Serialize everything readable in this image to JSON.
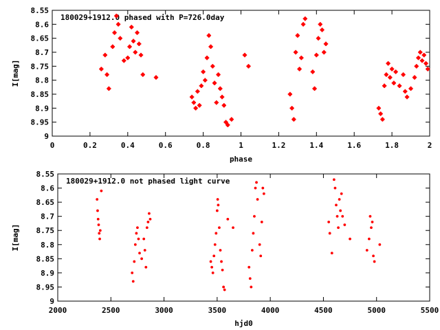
{
  "chart_data": [
    {
      "type": "scatter",
      "title": "180029+1912.0 phased with P=726.0day",
      "xlabel": "phase",
      "ylabel": "I[mag]",
      "xlim": [
        0,
        2
      ],
      "ylim": [
        9,
        8.55
      ],
      "y_inverted": true,
      "xticks": [
        0,
        0.2,
        0.4,
        0.6,
        0.8,
        1,
        1.2,
        1.4,
        1.6,
        1.8,
        2
      ],
      "xtick_labels": [
        "0",
        "0.2",
        "0.4",
        "0.6",
        "0.8",
        "1",
        "1.2",
        "1.4",
        "1.6",
        "1.8",
        "2"
      ],
      "yticks": [
        8.55,
        8.6,
        8.65,
        8.7,
        8.75,
        8.8,
        8.85,
        8.9,
        8.95,
        9
      ],
      "ytick_labels": [
        "8.55",
        "8.6",
        "8.65",
        "8.7",
        "8.75",
        "8.8",
        "8.85",
        "8.9",
        "8.95",
        "9"
      ],
      "marker_color": "#ff0000",
      "x": [
        0.26,
        0.28,
        0.29,
        0.3,
        0.32,
        0.33,
        0.34,
        0.35,
        0.36,
        0.38,
        0.4,
        0.41,
        0.42,
        0.43,
        0.44,
        0.45,
        0.46,
        0.47,
        0.48,
        0.55,
        0.74,
        0.75,
        0.76,
        0.77,
        0.78,
        0.79,
        0.8,
        0.81,
        0.82,
        0.83,
        0.84,
        0.85,
        0.86,
        0.87,
        0.88,
        0.89,
        0.9,
        0.91,
        0.92,
        0.93,
        0.95,
        1.02,
        1.04,
        1.26,
        1.27,
        1.28,
        1.29,
        1.3,
        1.31,
        1.32,
        1.33,
        1.34,
        1.38,
        1.39,
        1.4,
        1.41,
        1.42,
        1.43,
        1.44,
        1.45,
        1.73,
        1.74,
        1.75,
        1.76,
        1.77,
        1.78,
        1.79,
        1.8,
        1.81,
        1.82,
        1.84,
        1.86,
        1.87,
        1.88,
        1.9,
        1.92,
        1.93,
        1.94,
        1.95,
        1.96,
        1.97,
        1.98,
        1.99
      ],
      "y": [
        8.76,
        8.71,
        8.78,
        8.83,
        8.68,
        8.63,
        8.57,
        8.6,
        8.65,
        8.73,
        8.72,
        8.68,
        8.61,
        8.66,
        8.7,
        8.63,
        8.67,
        8.71,
        8.78,
        8.79,
        8.86,
        8.88,
        8.9,
        8.84,
        8.89,
        8.82,
        8.77,
        8.8,
        8.72,
        8.64,
        8.68,
        8.75,
        8.81,
        8.88,
        8.78,
        8.83,
        8.86,
        8.89,
        8.95,
        8.96,
        8.94,
        8.71,
        8.75,
        8.85,
        8.9,
        8.94,
        8.7,
        8.64,
        8.76,
        8.72,
        8.6,
        8.58,
        8.77,
        8.83,
        8.71,
        8.65,
        8.6,
        8.62,
        8.7,
        8.67,
        8.9,
        8.92,
        8.94,
        8.82,
        8.78,
        8.74,
        8.79,
        8.76,
        8.81,
        8.77,
        8.82,
        8.78,
        8.84,
        8.86,
        8.83,
        8.79,
        8.75,
        8.72,
        8.7,
        8.73,
        8.71,
        8.74,
        8.76
      ]
    },
    {
      "type": "scatter",
      "title": "180029+1912.0 not phased light curve",
      "xlabel": "hjd0",
      "ylabel": "I[mag]",
      "xlim": [
        2000,
        5500
      ],
      "ylim": [
        9,
        8.55
      ],
      "y_inverted": true,
      "xticks": [
        2000,
        2500,
        3000,
        3500,
        4000,
        4500,
        5000,
        5500
      ],
      "xtick_labels": [
        "2000",
        "2500",
        "3000",
        "3500",
        "4000",
        "4500",
        "5000",
        "5500"
      ],
      "yticks": [
        8.55,
        8.6,
        8.65,
        8.7,
        8.75,
        8.8,
        8.85,
        8.9,
        8.95,
        9
      ],
      "ytick_labels": [
        "8.55",
        "8.6",
        "8.65",
        "8.7",
        "8.75",
        "8.8",
        "8.85",
        "8.9",
        "8.95",
        "9"
      ],
      "marker_color": "#ff0000",
      "x": [
        2370,
        2375,
        2380,
        2385,
        2390,
        2395,
        2400,
        2410,
        2700,
        2710,
        2720,
        2730,
        2740,
        2750,
        2760,
        2770,
        2790,
        2810,
        2820,
        2830,
        2840,
        2850,
        2860,
        2870,
        3440,
        3450,
        3460,
        3470,
        3480,
        3490,
        3500,
        3505,
        3510,
        3520,
        3530,
        3540,
        3550,
        3560,
        3570,
        3600,
        3650,
        3800,
        3810,
        3820,
        3830,
        3840,
        3850,
        3860,
        3870,
        3880,
        3900,
        3910,
        3920,
        3930,
        3940,
        4550,
        4560,
        4580,
        4600,
        4610,
        4620,
        4630,
        4640,
        4650,
        4660,
        4670,
        4680,
        4700,
        4750,
        4910,
        4930,
        4940,
        4950,
        4960,
        4970,
        4980,
        5030
      ],
      "y": [
        8.64,
        8.68,
        8.71,
        8.73,
        8.76,
        8.78,
        8.75,
        8.61,
        8.9,
        8.93,
        8.86,
        8.8,
        8.76,
        8.74,
        8.78,
        8.83,
        8.85,
        8.78,
        8.82,
        8.88,
        8.74,
        8.72,
        8.69,
        8.71,
        8.86,
        8.88,
        8.9,
        8.84,
        8.8,
        8.76,
        8.68,
        8.64,
        8.66,
        8.74,
        8.82,
        8.86,
        8.89,
        8.95,
        8.96,
        8.71,
        8.74,
        8.88,
        8.92,
        8.95,
        8.82,
        8.76,
        8.7,
        8.6,
        8.58,
        8.64,
        8.8,
        8.84,
        8.72,
        8.6,
        8.62,
        8.72,
        8.76,
        8.83,
        8.57,
        8.6,
        8.66,
        8.7,
        8.74,
        8.64,
        8.68,
        8.62,
        8.7,
        8.73,
        8.78,
        8.82,
        8.78,
        8.7,
        8.74,
        8.72,
        8.84,
        8.86,
        8.8
      ]
    }
  ]
}
